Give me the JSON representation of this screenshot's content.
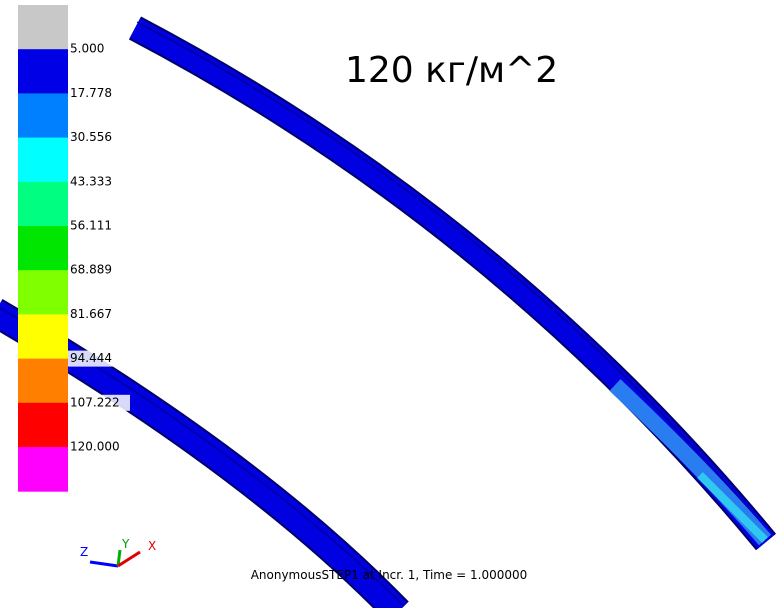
{
  "title": "120 кг/м^2",
  "legend": {
    "labels": [
      "5.000",
      "17.778",
      "30.556",
      "43.333",
      "56.111",
      "68.889",
      "81.667",
      "94.444",
      "107.222",
      "120.000"
    ],
    "colors": [
      "#c8c8c8",
      "#0000e6",
      "#0080ff",
      "#00ffff",
      "#00ff80",
      "#00e600",
      "#80ff00",
      "#ffff00",
      "#ff8000",
      "#ff0000",
      "#ff00ff"
    ]
  },
  "triad": {
    "z": "Z",
    "y": "Y",
    "x": "X"
  },
  "footer": "AnonymousSTEP1 at Incr. 1, Time = 1.000000"
}
